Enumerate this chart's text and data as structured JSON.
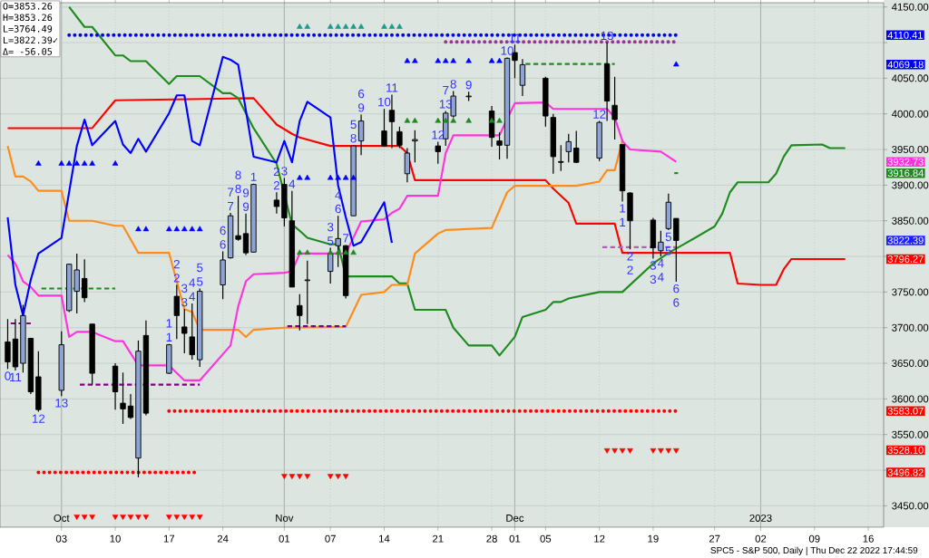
{
  "chart_data": {
    "type": "candlestick",
    "marker": "none",
    "grid": true,
    "xlim": [
      "2022-09-25",
      "2023-01-18"
    ],
    "ylim": [
      3420,
      4156
    ],
    "xticks": [
      {
        "value": "2022-10-03",
        "label": "03"
      },
      {
        "value": "2022-10-10",
        "label": "10"
      },
      {
        "value": "2022-10-17",
        "label": "17"
      },
      {
        "value": "2022-10-24",
        "label": "24"
      },
      {
        "value": "2022-11-01",
        "label": "01"
      },
      {
        "value": "2022-11-07",
        "label": "07"
      },
      {
        "value": "2022-11-14",
        "label": "14"
      },
      {
        "value": "2022-11-21",
        "label": "21"
      },
      {
        "value": "2022-11-28",
        "label": "28"
      },
      {
        "value": "2022-12-01",
        "label": "01"
      },
      {
        "value": "2022-12-05",
        "label": "05"
      },
      {
        "value": "2022-12-12",
        "label": "12"
      },
      {
        "value": "2022-12-19",
        "label": "19"
      },
      {
        "value": "2022-12-27",
        "label": "27"
      },
      {
        "value": "2023-01-02",
        "label": "02"
      },
      {
        "value": "2023-01-09",
        "label": "09"
      },
      {
        "value": "2023-01-16",
        "label": "16"
      }
    ],
    "x2lim": [
      "2022-09-25",
      "2023-01-18"
    ],
    "x2ticks": [
      {
        "value": "2022-10-03",
        "label": "Oct"
      },
      {
        "value": "2022-11-01",
        "label": "Nov"
      },
      {
        "value": "2022-12-01",
        "label": "Dec"
      },
      {
        "value": "2023-01-02",
        "label": "2023"
      }
    ],
    "yticks": [
      {
        "value": 3450,
        "label": "3450.00"
      },
      {
        "value": 3500,
        "label": null
      },
      {
        "value": 3550,
        "label": "3550.00"
      },
      {
        "value": 3600,
        "label": "3600.00"
      },
      {
        "value": 3650,
        "label": "3650.00"
      },
      {
        "value": 3700,
        "label": "3700.00"
      },
      {
        "value": 3750,
        "label": "3750.00"
      },
      {
        "value": 3800,
        "label": null
      },
      {
        "value": 3850,
        "label": "3850.00"
      },
      {
        "value": 3900,
        "label": "3900.00"
      },
      {
        "value": 3950,
        "label": "3950.00"
      },
      {
        "value": 4000,
        "label": "4000.00"
      },
      {
        "value": 4050,
        "label": "4050.00"
      },
      {
        "value": 4100,
        "label": null
      },
      {
        "value": 4150,
        "label": "4150.00"
      }
    ],
    "y2lim": [
      3420,
      4156
    ],
    "y2ticks": [
      3496.82,
      {
        "value": 3528.1,
        "label": "3528.10"
      },
      3583.07,
      3796.27,
      3822.39,
      3916.84,
      3932.73,
      4069.18,
      4110.41
    ],
    "x": [
      "2022-09-26",
      "2022-09-27",
      "2022-09-28",
      "2022-09-29",
      "2022-09-30",
      "2022-10-03",
      "2022-10-04",
      "2022-10-05",
      "2022-10-06",
      "2022-10-07",
      "2022-10-10",
      "2022-10-11",
      "2022-10-12",
      "2022-10-13",
      "2022-10-14",
      "2022-10-17",
      "2022-10-18",
      "2022-10-19",
      "2022-10-20",
      "2022-10-21",
      "2022-10-24",
      "2022-10-25",
      "2022-10-26",
      "2022-10-27",
      "2022-10-28",
      "2022-10-31",
      "2022-11-01",
      "2022-11-02",
      "2022-11-03",
      "2022-11-04",
      "2022-11-07",
      "2022-11-08",
      "2022-11-09",
      "2022-11-10",
      "2022-11-11",
      "2022-11-14",
      "2022-11-15",
      "2022-11-16",
      "2022-11-17",
      "2022-11-18",
      "2022-11-21",
      "2022-11-22",
      "2022-11-23",
      "2022-11-25",
      "2022-11-28",
      "2022-11-29",
      "2022-11-30",
      "2022-12-01",
      "2022-12-02",
      "2022-12-05",
      "2022-12-06",
      "2022-12-07",
      "2022-12-08",
      "2022-12-09",
      "2022-12-12",
      "2022-12-13",
      "2022-12-14",
      "2022-12-15",
      "2022-12-16",
      "2022-12-19",
      "2022-12-20",
      "2022-12-21",
      "2022-12-22"
    ],
    "ohlc": [
      [
        3680,
        3712,
        3642,
        3652
      ],
      [
        3684,
        3712,
        3640,
        3645
      ],
      [
        3650,
        3732,
        3637,
        3717
      ],
      [
        3685,
        3685,
        3607,
        3610
      ],
      [
        3631,
        3667,
        3582,
        3585
      ],
      [
        3612,
        3695,
        3604,
        3676
      ],
      [
        3724,
        3790,
        3722,
        3789
      ],
      [
        3751,
        3804,
        3720,
        3781
      ],
      [
        3769,
        3796,
        3736,
        3742
      ],
      [
        3705,
        3705,
        3620,
        3636
      ],
      [
        3646,
        3650,
        3585,
        3610
      ],
      [
        3594,
        3637,
        3565,
        3586
      ],
      [
        3590,
        3607,
        3572,
        3574
      ],
      [
        3517,
        3682,
        3490,
        3667
      ],
      [
        3689,
        3710,
        3577,
        3580
      ],
      [
        3636,
        3677,
        3635,
        3676
      ],
      [
        3744,
        3760,
        3684,
        3717
      ],
      [
        3701,
        3726,
        3664,
        3692
      ],
      [
        3687,
        3734,
        3655,
        3662
      ],
      [
        3655,
        3755,
        3645,
        3751
      ],
      [
        3760,
        3807,
        3740,
        3795
      ],
      [
        3798,
        3861,
        3797,
        3857
      ],
      [
        3829,
        3885,
        3822,
        3824
      ],
      [
        3832,
        3860,
        3802,
        3805
      ],
      [
        3806,
        3902,
        3806,
        3901
      ],
      [
        3879,
        3890,
        3860,
        3870
      ],
      [
        3901,
        3910,
        3842,
        3854
      ],
      [
        3850,
        3892,
        3757,
        3757
      ],
      [
        3731,
        3747,
        3696,
        3717
      ],
      [
        3766,
        3794,
        3705,
        3767
      ],
      [
        3779,
        3812,
        3762,
        3804
      ],
      [
        3815,
        3857,
        3785,
        3825
      ],
      [
        3815,
        3816,
        3741,
        3745
      ],
      [
        3857,
        3956,
        3857,
        3955
      ],
      [
        3962,
        3999,
        3942,
        3990
      ],
      [
        3976,
        4007,
        3955,
        3955
      ],
      [
        4005,
        4027,
        3952,
        3989
      ],
      [
        3975,
        3982,
        3952,
        3956
      ],
      [
        3916,
        3952,
        3904,
        3945
      ],
      [
        3962,
        3977,
        3932,
        3964
      ],
      [
        3955,
        3961,
        3930,
        3947
      ],
      [
        3965,
        4004,
        3955,
        4001
      ],
      [
        3997,
        4032,
        3995,
        4025
      ],
      [
        4024,
        4031,
        4018,
        4025
      ],
      [
        4004,
        4011,
        3954,
        3967
      ],
      [
        3962,
        3974,
        3936,
        3956
      ],
      [
        3956,
        4079,
        3937,
        4078
      ],
      [
        4086,
        4097,
        4050,
        4075
      ],
      [
        4040,
        4077,
        4025,
        4069
      ],
      [
        4050,
        4052,
        3982,
        3997
      ],
      [
        3995,
        4000,
        3916,
        3940
      ],
      [
        3933,
        3956,
        3920,
        3932
      ],
      [
        3947,
        3972,
        3932,
        3961
      ],
      [
        3952,
        3976,
        3931,
        3932
      ],
      [
        3938,
        3990,
        3934,
        3988
      ],
      [
        4070,
        4100,
        3990,
        4018
      ],
      [
        4012,
        4052,
        3964,
        3992
      ],
      [
        3957,
        3957,
        3877,
        3892
      ],
      [
        3889,
        3890,
        3810,
        3850
      ],
      [
        3851,
        3854,
        3797,
        3812
      ],
      [
        3808,
        3836,
        3800,
        3820
      ],
      [
        3839,
        3888,
        3837,
        3876
      ],
      [
        3853.26,
        3853.26,
        3764.49,
        3822.39
      ]
    ],
    "series": [
      {
        "type": "line",
        "color": "#ff0000",
        "x": [
          "2022-09-26",
          "2022-10-07",
          "2022-10-10",
          "2022-10-28",
          "2022-10-31",
          "2022-11-02",
          "2022-11-03",
          "2022-11-07",
          "2022-11-16",
          "2022-11-17",
          "2022-11-18",
          "2022-12-05",
          "2022-12-06",
          "2022-12-08",
          "2022-12-09",
          "2022-12-14",
          "2022-12-15",
          "2022-12-29",
          "2022-12-30",
          "2023-01-02",
          "2023-01-04",
          "2023-01-05",
          "2023-01-06",
          "2023-01-13"
        ],
        "values": [
          3980,
          3980,
          4019,
          4022,
          3985,
          3972,
          3967,
          3955,
          3955,
          3945,
          3907,
          3907,
          3895,
          3875,
          3846,
          3846,
          3805,
          3805,
          3762,
          3760,
          3760,
          3782,
          3796.27,
          3796.27
        ]
      },
      {
        "type": "line",
        "color": "#1f8a1f",
        "x": [
          "2022-10-04",
          "2022-10-06",
          "2022-10-07",
          "2022-10-10",
          "2022-10-11",
          "2022-10-12",
          "2022-10-14",
          "2022-10-17",
          "2022-10-18",
          "2022-10-21",
          "2022-10-24",
          "2022-10-25",
          "2022-10-26",
          "2022-10-28",
          "2022-10-31",
          "2022-11-02",
          "2022-11-03",
          "2022-11-04",
          "2022-11-07",
          "2022-11-08",
          "2022-11-09",
          "2022-11-11",
          "2022-11-15",
          "2022-11-16",
          "2022-11-17",
          "2022-11-18",
          "2022-11-22",
          "2022-11-23",
          "2022-11-25",
          "2022-11-28",
          "2022-11-29",
          "2022-12-01",
          "2022-12-02",
          "2022-12-05",
          "2022-12-06",
          "2022-12-07",
          "2022-12-08",
          "2022-12-12",
          "2022-12-15",
          "2022-12-19",
          "2022-12-21",
          "2022-12-23",
          "2022-12-27",
          "2022-12-28",
          "2022-12-29",
          "2022-12-30",
          "2023-01-03",
          "2023-01-04",
          "2023-01-05",
          "2023-01-06",
          "2023-01-10",
          "2023-01-11",
          "2023-01-13"
        ],
        "values": [
          4150,
          4122,
          4122,
          4082,
          4082,
          4074,
          4074,
          4042,
          4053,
          4053,
          4029,
          4029,
          4022,
          3980,
          3930,
          3845,
          3836,
          3826,
          3817,
          3817,
          3772,
          3772,
          3772,
          3762,
          3762,
          3725,
          3725,
          3700,
          3675,
          3675,
          3661,
          3687,
          3715,
          3725,
          3736,
          3736,
          3741,
          3750,
          3750,
          3790,
          3805,
          3817,
          3842,
          3860,
          3890,
          3904,
          3904,
          3916,
          3940,
          3956,
          3957,
          3952,
          3952
        ]
      },
      {
        "type": "line",
        "color": "#ff8c1a",
        "x": [
          "2022-09-26",
          "2022-09-27",
          "2022-09-28",
          "2022-09-29",
          "2022-09-30",
          "2022-10-03",
          "2022-10-04",
          "2022-10-07",
          "2022-10-10",
          "2022-10-11",
          "2022-10-13",
          "2022-10-17",
          "2022-10-18",
          "2022-10-19",
          "2022-10-20",
          "2022-10-21",
          "2022-10-26",
          "2022-10-27",
          "2022-10-28",
          "2022-11-01",
          "2022-11-09",
          "2022-11-11",
          "2022-11-14",
          "2022-11-15",
          "2022-11-17",
          "2022-11-18",
          "2022-11-21",
          "2022-11-22",
          "2022-11-28",
          "2022-11-29",
          "2022-11-30",
          "2022-12-01",
          "2022-12-09",
          "2022-12-12",
          "2022-12-13",
          "2022-12-14",
          "2022-12-15"
        ],
        "values": [
          3955,
          3912,
          3912,
          3905,
          3892,
          3892,
          3850,
          3850,
          3843,
          3843,
          3805,
          3805,
          3765,
          3726,
          3722,
          3697,
          3697,
          3687,
          3697,
          3700,
          3701,
          3746,
          3750,
          3760,
          3760,
          3804,
          3832,
          3837,
          3840,
          3865,
          3890,
          3899,
          3899,
          3905,
          3921,
          3921,
          3962
        ]
      },
      {
        "type": "line",
        "color": "#ff33dd",
        "x": [
          "2022-09-26",
          "2022-09-27",
          "2022-09-28",
          "2022-09-29",
          "2022-09-30",
          "2022-10-03",
          "2022-10-04",
          "2022-10-05",
          "2022-10-07",
          "2022-10-10",
          "2022-10-11",
          "2022-10-13",
          "2022-10-17",
          "2022-10-19",
          "2022-10-21",
          "2022-10-25",
          "2022-10-26",
          "2022-10-27",
          "2022-10-28",
          "2022-11-01",
          "2022-11-02",
          "2022-11-03",
          "2022-11-09",
          "2022-11-11",
          "2022-11-14",
          "2022-11-15",
          "2022-11-16",
          "2022-11-17",
          "2022-11-21",
          "2022-11-22",
          "2022-11-23",
          "2022-11-29",
          "2022-12-01",
          "2022-12-05",
          "2022-12-06",
          "2022-12-13",
          "2022-12-14",
          "2022-12-15",
          "2022-12-16",
          "2022-12-20",
          "2022-12-22"
        ],
        "values": [
          3802,
          3790,
          3765,
          3757,
          3745,
          3745,
          3687,
          3694,
          3694,
          3681,
          3681,
          3647,
          3647,
          3626,
          3626,
          3675,
          3730,
          3765,
          3775,
          3777,
          3779,
          3804,
          3804,
          3849,
          3852,
          3861,
          3867,
          3885,
          3885,
          3945,
          3970,
          3970,
          4015,
          4016,
          4007,
          4007,
          3995,
          3962,
          3950,
          3947,
          3932.73
        ]
      },
      {
        "type": "line",
        "color": "#0000ff",
        "x": [
          "2022-09-26",
          "2022-09-27",
          "2022-09-28",
          "2022-09-29",
          "2022-09-30",
          "2022-10-03",
          "2022-10-05",
          "2022-10-06",
          "2022-10-07",
          "2022-10-10",
          "2022-10-11",
          "2022-10-12",
          "2022-10-13",
          "2022-10-14",
          "2022-10-17",
          "2022-10-18",
          "2022-10-19",
          "2022-10-20",
          "2022-10-21",
          "2022-10-24",
          "2022-10-25",
          "2022-10-26",
          "2022-10-27",
          "2022-10-28",
          "2022-10-31",
          "2022-11-01",
          "2022-11-02",
          "2022-11-03",
          "2022-11-04",
          "2022-11-07",
          "2022-11-08",
          "2022-11-09",
          "2022-11-10",
          "2022-11-11",
          "2022-11-14",
          "2022-11-15"
        ],
        "values": [
          3855,
          3760,
          3717,
          3767,
          3804,
          3826,
          3955,
          3992,
          3956,
          3990,
          3957,
          3945,
          3965,
          3947,
          4001,
          4026,
          4026,
          3962,
          3956,
          4080,
          4076,
          4069,
          4005,
          3940,
          3932,
          3962,
          3932,
          3990,
          4017,
          3995,
          3900,
          3855,
          3815,
          3820,
          3876,
          3819
        ]
      },
      {
        "type": "line",
        "line_style": "dotted",
        "color": "#0000ff",
        "x": [
          "2022-10-04",
          "2022-12-22"
        ],
        "values": [
          4110.41,
          4110.41
        ]
      },
      {
        "type": "line",
        "line_style": "dotted",
        "color": "#993399",
        "x": [
          "2022-11-22",
          "2022-12-22"
        ],
        "values": [
          4101,
          4101
        ]
      },
      {
        "type": "line",
        "line_style": "dotted",
        "color": "#ff0000",
        "x": [
          "2022-10-17",
          "2022-12-22"
        ],
        "values": [
          3583.07,
          3583.07
        ]
      },
      {
        "type": "line",
        "line_style": "dotted",
        "color": "#ff0000",
        "x": [
          "2022-09-30",
          "2022-10-21"
        ],
        "values": [
          3496.82,
          3496.82
        ]
      },
      {
        "type": "line",
        "line_style": "dashed",
        "color": "#1f8a1f",
        "x": [
          "2022-12-02",
          "2022-12-14"
        ],
        "values": [
          4070,
          4070
        ]
      },
      {
        "type": "line",
        "line_style": "dashed",
        "color": "#1f8a1f",
        "x": [
          "2022-09-30",
          "2022-10-10"
        ],
        "values": [
          3755,
          3755
        ]
      },
      {
        "type": "line",
        "line_style": "dashed",
        "color": "#800080",
        "x": [
          "2022-09-26",
          "2022-09-29"
        ],
        "values": [
          3706,
          3706
        ]
      },
      {
        "type": "line",
        "line_style": "dashed",
        "color": "#800080",
        "x": [
          "2022-10-05",
          "2022-10-21"
        ],
        "values": [
          3620,
          3620
        ]
      },
      {
        "type": "line",
        "line_style": "dashed",
        "color": "#800080",
        "x": [
          "2022-11-01",
          "2022-11-09"
        ],
        "values": [
          3702,
          3702
        ]
      },
      {
        "type": "line",
        "line_style": "dashed",
        "color": "#b060b0",
        "x": [
          "2022-12-12",
          "2022-12-22"
        ],
        "values": [
          3813,
          3813
        ]
      },
      {
        "type": "line",
        "color": "#1f8a1f",
        "x": [
          "2022-12-21T18:00",
          "2022-12-22T06:00"
        ],
        "values": [
          3916.84,
          3916.84
        ]
      },
      {
        "type": "scatter",
        "marker": "triangle",
        "color": "#0000ff",
        "x": [
          "2022-09-30",
          "2022-10-03",
          "2022-10-04",
          "2022-10-05",
          "2022-10-06",
          "2022-10-07",
          "2022-10-10"
        ],
        "values": [
          3930,
          3930,
          3930,
          3930,
          3930,
          3930,
          3930
        ]
      },
      {
        "type": "scatter",
        "marker": "triangle",
        "color": "#0000ff",
        "x": [
          "2022-10-13",
          "2022-10-14",
          "2022-10-17",
          "2022-10-18",
          "2022-10-19",
          "2022-10-20",
          "2022-10-21"
        ],
        "values": [
          3838,
          3838,
          3838,
          3838,
          3838,
          3838,
          3838
        ]
      },
      {
        "type": "scatter",
        "marker": "triangle",
        "color": "#0000ff",
        "x": [
          "2022-11-03",
          "2022-11-04",
          "2022-11-07",
          "2022-11-08",
          "2022-11-09",
          "2022-11-10"
        ],
        "values": [
          3910,
          3910,
          3910,
          3910,
          3910,
          3910
        ]
      },
      {
        "type": "scatter",
        "marker": "triangle",
        "color": "#1a9a8a",
        "x": [
          "2022-11-03",
          "2022-11-04",
          "2022-11-07",
          "2022-11-08",
          "2022-11-09",
          "2022-11-10",
          "2022-11-11",
          "2022-11-14",
          "2022-11-15",
          "2022-11-16"
        ],
        "values": [
          4122,
          4122,
          4122,
          4122,
          4122,
          4122,
          4122,
          4122,
          4122,
          4122
        ]
      },
      {
        "type": "scatter",
        "marker": "triangle",
        "color": "#0000ff",
        "x": [
          "2022-11-17",
          "2022-11-18",
          "2022-11-21",
          "2022-11-22",
          "2022-11-23",
          "2022-11-25",
          "2022-11-28",
          "2022-11-29"
        ],
        "values": [
          4074,
          4074,
          4074,
          4074,
          4074,
          4074,
          4074,
          4074
        ]
      },
      {
        "type": "scatter",
        "marker": "triangle",
        "color": "#1f8a1f",
        "x": [
          "2022-11-17",
          "2022-11-18",
          "2022-11-21",
          "2022-11-22",
          "2022-11-23",
          "2022-11-25",
          "2022-11-28",
          "2022-11-29"
        ],
        "values": [
          3990,
          3990,
          3990,
          3990,
          3990,
          3990,
          3990,
          3990
        ]
      },
      {
        "type": "scatter",
        "marker": "triangle",
        "color": "#1f8a1f",
        "x": [
          "2022-11-03",
          "2022-11-04",
          "2022-11-07",
          "2022-11-08",
          "2022-11-09",
          "2022-11-10"
        ],
        "values": [
          3805,
          3805,
          3805,
          3805,
          3805,
          3805
        ]
      },
      {
        "type": "scatter",
        "marker": "triangle",
        "color": "#0000ff",
        "x": [
          "2022-12-22"
        ],
        "values": [
          4069.18
        ]
      },
      {
        "type": "scatter",
        "marker": "triangle down",
        "color": "#ff0000",
        "x": [
          "2022-10-05",
          "2022-10-06",
          "2022-10-07",
          "2022-10-10",
          "2022-10-11",
          "2022-10-12",
          "2022-10-13",
          "2022-10-14",
          "2022-10-17",
          "2022-10-18",
          "2022-10-19",
          "2022-10-20",
          "2022-10-21"
        ],
        "values": [
          3435,
          3435,
          3435,
          3435,
          3435,
          3435,
          3435,
          3435,
          3435,
          3435,
          3435,
          3435,
          3435
        ]
      },
      {
        "type": "scatter",
        "marker": "triangle down",
        "color": "#ff0000",
        "x": [
          "2022-11-01",
          "2022-11-02",
          "2022-11-03",
          "2022-11-04",
          "2022-11-07",
          "2022-11-08",
          "2022-11-09"
        ],
        "values": [
          3492,
          3492,
          3492,
          3492,
          3492,
          3492,
          3492
        ]
      },
      {
        "type": "scatter",
        "marker": "triangle down",
        "color": "#ff0000",
        "x": [
          "2022-12-13",
          "2022-12-14",
          "2022-12-15",
          "2022-12-16",
          "2022-12-19",
          "2022-12-20",
          "2022-12-21",
          "2022-12-22"
        ],
        "values": [
          3528.1,
          3528.1,
          3528.1,
          3528.1,
          3528.1,
          3528.1,
          3528.1,
          3528.1
        ]
      }
    ],
    "annotations": [
      "O=3853.26",
      "H=3853.26",
      "L=3764.49",
      "L=3822.39✓",
      "Δ= -56.05",
      "SPC5 - S&P 500, Daily | Thu Dec 22 2022 17:44:59",
      {
        "text": "1",
        "x": "2022-10-17",
        "y": 3677
      },
      {
        "text": "1",
        "x": "2022-10-17",
        "y": 3677
      },
      {
        "text": "2",
        "x": "2022-10-18",
        "y": 3760
      },
      {
        "text": "2",
        "x": "2022-10-18",
        "y": 3760
      },
      {
        "text": "3",
        "x": "2022-10-19",
        "y": 3726
      },
      {
        "text": "3",
        "x": "2022-10-19",
        "y": 3726
      },
      {
        "text": "4",
        "x": "2022-10-20",
        "y": 3734
      },
      {
        "text": "4",
        "x": "2022-10-20",
        "y": 3734
      },
      {
        "text": "5",
        "x": "2022-10-21",
        "y": 3755
      },
      {
        "text": "5",
        "x": "2022-10-21",
        "y": 3755
      },
      {
        "text": "6",
        "x": "2022-10-24",
        "y": 3807
      },
      {
        "text": "6",
        "x": "2022-10-24",
        "y": 3807
      },
      {
        "text": "7",
        "x": "2022-10-25",
        "y": 3861
      },
      {
        "text": "7",
        "x": "2022-10-25",
        "y": 3861
      },
      {
        "text": "8",
        "x": "2022-10-26",
        "y": 3885
      },
      {
        "text": "8",
        "x": "2022-10-26",
        "y": 3885
      },
      {
        "text": "9",
        "x": "2022-10-27",
        "y": 3860
      },
      {
        "text": "9",
        "x": "2022-10-27",
        "y": 3860
      },
      {
        "text": "1",
        "x": "2022-12-15",
        "y": 3877
      },
      {
        "text": "1",
        "x": "2022-12-15",
        "y": 3877
      },
      {
        "text": "2",
        "x": "2022-12-16",
        "y": 3810
      },
      {
        "text": "2",
        "x": "2022-12-16",
        "y": 3810
      },
      {
        "text": "3",
        "x": "2022-12-19",
        "y": 3797
      },
      {
        "text": "3",
        "x": "2022-12-19",
        "y": 3797
      },
      {
        "text": "4",
        "x": "2022-12-20",
        "y": 3800
      },
      {
        "text": "4",
        "x": "2022-12-20",
        "y": 3800
      },
      {
        "text": "5",
        "x": "2022-12-21",
        "y": 3837
      },
      {
        "text": "5",
        "x": "2022-12-21",
        "y": 3837
      },
      {
        "text": "6",
        "x": "2022-12-22",
        "y": 3764.49
      },
      {
        "text": "6",
        "x": "2022-12-22",
        "y": 3764.49
      },
      {
        "text": "0",
        "x": "2022-09-26",
        "y": 3642
      },
      {
        "text": "11",
        "x": "2022-09-27",
        "y": 3640
      },
      {
        "text": "12",
        "x": "2022-09-30",
        "y": 3582
      },
      {
        "text": "13",
        "x": "2022-10-03",
        "y": 3604
      },
      {
        "text": "1",
        "x": "2022-10-28",
        "y": 3902
      },
      {
        "text": "2",
        "x": "2022-10-31",
        "y": 3890
      },
      {
        "text": "2",
        "x": "2022-10-31",
        "y": 3890
      },
      {
        "text": "3",
        "x": "2022-11-01",
        "y": 3910
      },
      {
        "text": "4",
        "x": "2022-11-02",
        "y": 3892
      },
      {
        "text": "5",
        "x": "2022-11-07",
        "y": 3812
      },
      {
        "text": "3",
        "x": "2022-11-07",
        "y": 3812
      },
      {
        "text": "6",
        "x": "2022-11-08",
        "y": 3857
      },
      {
        "text": "4",
        "x": "2022-11-08",
        "y": 3857
      },
      {
        "text": "7",
        "x": "2022-11-09",
        "y": 3816
      },
      {
        "text": "8",
        "x": "2022-11-10",
        "y": 3956
      },
      {
        "text": "5",
        "x": "2022-11-10",
        "y": 3956
      },
      {
        "text": "9",
        "x": "2022-11-11",
        "y": 3999
      },
      {
        "text": "6",
        "x": "2022-11-11",
        "y": 3999
      },
      {
        "text": "10",
        "x": "2022-11-14",
        "y": 4007
      },
      {
        "text": "11",
        "x": "2022-11-15",
        "y": 4027
      },
      {
        "text": "12",
        "x": "2022-11-21",
        "y": 3961
      },
      {
        "text": "13",
        "x": "2022-11-22",
        "y": 4004
      },
      {
        "text": "7",
        "x": "2022-11-22",
        "y": 4004
      },
      {
        "text": "8",
        "x": "2022-11-23",
        "y": 4032
      },
      {
        "text": "9",
        "x": "2022-11-25",
        "y": 4031
      },
      {
        "text": "10",
        "x": "2022-11-30",
        "y": 4079
      },
      {
        "text": "11",
        "x": "2022-12-01",
        "y": 4097
      },
      {
        "text": "12",
        "x": "2022-12-12",
        "y": 3990
      },
      {
        "text": "13",
        "x": "2022-12-13",
        "y": 4100
      }
    ]
  }
}
